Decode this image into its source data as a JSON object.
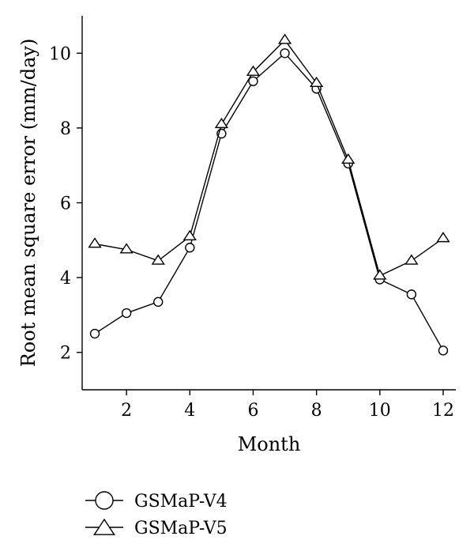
{
  "chart_data": {
    "type": "line",
    "title": "",
    "xlabel": "Month",
    "ylabel": "Root mean square error (mm/day)",
    "xlim": [
      0.6,
      12.4
    ],
    "ylim": [
      1,
      11
    ],
    "xticks": [
      2,
      4,
      6,
      8,
      10,
      12
    ],
    "yticks": [
      2,
      4,
      6,
      8,
      10
    ],
    "grid": false,
    "legend_position": "bottom-left",
    "x": [
      1,
      2,
      3,
      4,
      5,
      6,
      7,
      8,
      9,
      10,
      11,
      12
    ],
    "series": [
      {
        "name": "GSMaP-V4",
        "marker": "circle",
        "values": [
          2.5,
          3.05,
          3.35,
          4.8,
          7.85,
          9.25,
          10.0,
          9.05,
          7.05,
          3.95,
          3.55,
          2.05
        ]
      },
      {
        "name": "GSMaP-V5",
        "marker": "triangle",
        "values": [
          4.9,
          4.75,
          4.45,
          5.1,
          8.1,
          9.5,
          10.35,
          9.2,
          7.15,
          4.05,
          4.45,
          5.05
        ]
      }
    ]
  }
}
